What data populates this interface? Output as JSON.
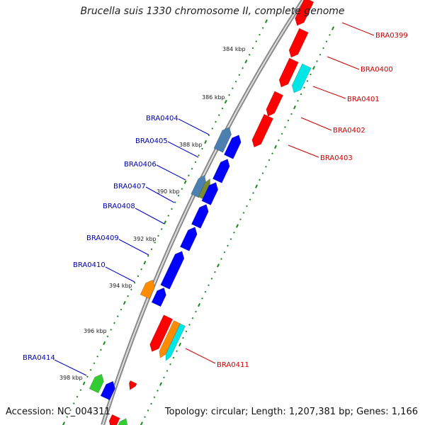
{
  "title": "Brucella suis 1330 chromosome II, complete genome",
  "footer": {
    "accession": "Accession: NC_004311",
    "summary": "Topology: circular; Length: 1,207,381 bp; Genes: 1,166"
  },
  "ruler_labels": [
    "384 kbp",
    "386 kbp",
    "388 kbp",
    "390 kbp",
    "392 kbp",
    "394 kbp",
    "396 kbp",
    "398 kbp"
  ],
  "genes_reverse": [
    "BRA0404",
    "BRA0405",
    "BRA0406",
    "BRA0407",
    "BRA0408",
    "BRA0409",
    "BRA0410",
    "BRA0414"
  ],
  "genes_forward": [
    "BRA0399",
    "BRA0400",
    "BRA0401",
    "BRA0402",
    "BRA0403",
    "BRA0411"
  ],
  "colors": {
    "forward_label": "#cc0000",
    "reverse_label": "#0000aa",
    "forward_gene": "#ff0000",
    "reverse_gene": "#0000ff",
    "cyan_gene": "#00e5e5",
    "orange_gene": "#ff8c00",
    "green_gene": "#33cc33",
    "steel_gene": "#4a7fb0",
    "olive_gene": "#7a8c33",
    "tick": "#1a8a1a"
  }
}
